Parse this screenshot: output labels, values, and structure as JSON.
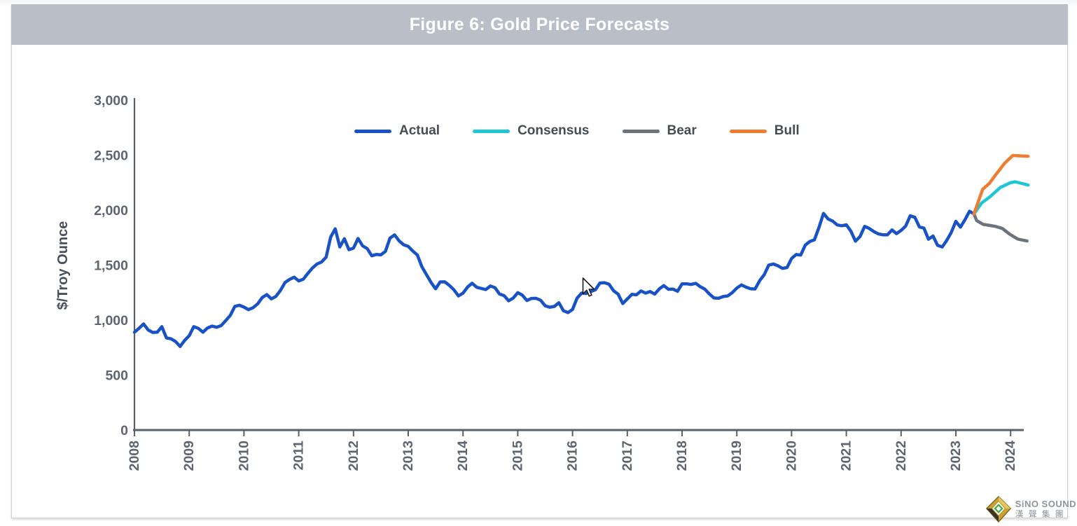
{
  "header": {
    "title": "Figure 6: Gold Price Forecasts"
  },
  "colors": {
    "header_bg": "#b9bec7",
    "axis": "#596169",
    "tick_label": "#5d6570",
    "actual": "#1852c6",
    "consensus": "#1fc6d6",
    "bear": "#6d737b",
    "bull": "#ee7d31"
  },
  "legend": {
    "items": [
      {
        "label": "Actual",
        "color": "#1852c6"
      },
      {
        "label": "Consensus",
        "color": "#1fc6d6"
      },
      {
        "label": "Bear",
        "color": "#6d737b"
      },
      {
        "label": "Bull",
        "color": "#ee7d31"
      }
    ]
  },
  "watermark": {
    "brand": "SiNO SOUND",
    "brand_cn": "漢聲集團"
  },
  "chart_data": {
    "type": "line",
    "title": "Figure 6: Gold Price Forecasts",
    "xlabel": "",
    "ylabel": "$/Troy Ounce",
    "ylim": [
      0,
      3000
    ],
    "yticks": [
      0,
      500,
      1000,
      1500,
      2000,
      2500,
      3000
    ],
    "ytick_labels": [
      "0",
      "500",
      "1,000",
      "1,500",
      "2,000",
      "2,500",
      "3,000"
    ],
    "xticks": [
      2008,
      2009,
      2010,
      2011,
      2012,
      2013,
      2014,
      2015,
      2016,
      2017,
      2018,
      2019,
      2020,
      2021,
      2022,
      2023,
      2024
    ],
    "grid": false,
    "legend_position": "top-center",
    "x_unit": "year, monthly resolution",
    "series": [
      {
        "name": "Actual",
        "color": "#1852c6",
        "x_start": 2008.0,
        "x_step": 0.08333,
        "values": [
          890,
          925,
          965,
          910,
          888,
          890,
          940,
          838,
          830,
          805,
          760,
          815,
          858,
          940,
          925,
          890,
          928,
          945,
          935,
          950,
          995,
          1043,
          1125,
          1135,
          1118,
          1095,
          1113,
          1148,
          1205,
          1232,
          1193,
          1215,
          1270,
          1342,
          1370,
          1390,
          1356,
          1372,
          1424,
          1473,
          1510,
          1528,
          1572,
          1755,
          1830,
          1665,
          1740,
          1640,
          1655,
          1742,
          1675,
          1650,
          1585,
          1597,
          1593,
          1625,
          1745,
          1775,
          1720,
          1685,
          1670,
          1628,
          1592,
          1485,
          1413,
          1342,
          1285,
          1347,
          1348,
          1315,
          1275,
          1220,
          1245,
          1300,
          1335,
          1298,
          1288,
          1278,
          1310,
          1295,
          1237,
          1222,
          1175,
          1200,
          1250,
          1227,
          1178,
          1197,
          1198,
          1180,
          1130,
          1117,
          1124,
          1158,
          1085,
          1068,
          1097,
          1200,
          1245,
          1242,
          1260,
          1275,
          1337,
          1340,
          1326,
          1266,
          1235,
          1150,
          1192,
          1234,
          1230,
          1265,
          1245,
          1260,
          1236,
          1283,
          1314,
          1280,
          1282,
          1262,
          1330,
          1330,
          1324,
          1334,
          1303,
          1281,
          1237,
          1201,
          1198,
          1214,
          1220,
          1250,
          1291,
          1320,
          1300,
          1285,
          1283,
          1358,
          1412,
          1500,
          1510,
          1494,
          1470,
          1478,
          1560,
          1596,
          1591,
          1682,
          1715,
          1730,
          1842,
          1970,
          1920,
          1900,
          1865,
          1858,
          1866,
          1808,
          1718,
          1760,
          1852,
          1834,
          1806,
          1784,
          1776,
          1776,
          1820,
          1786,
          1815,
          1855,
          1948,
          1935,
          1848,
          1836,
          1735,
          1765,
          1680,
          1665,
          1725,
          1798,
          1898,
          1845,
          1912,
          1990,
          1965
        ]
      },
      {
        "name": "Consensus",
        "color": "#1fc6d6",
        "points": [
          [
            2023.33,
            1965
          ],
          [
            2023.47,
            2065
          ],
          [
            2023.63,
            2125
          ],
          [
            2023.81,
            2205
          ],
          [
            2023.99,
            2248
          ],
          [
            2024.08,
            2258
          ],
          [
            2024.32,
            2228
          ]
        ]
      },
      {
        "name": "Bear",
        "color": "#6d737b",
        "points": [
          [
            2023.33,
            1965
          ],
          [
            2023.38,
            1905
          ],
          [
            2023.5,
            1870
          ],
          [
            2023.63,
            1860
          ],
          [
            2023.72,
            1852
          ],
          [
            2023.85,
            1833
          ],
          [
            2023.98,
            1782
          ],
          [
            2024.13,
            1737
          ],
          [
            2024.3,
            1719
          ]
        ]
      },
      {
        "name": "Bull",
        "color": "#ee7d31",
        "points": [
          [
            2023.33,
            1965
          ],
          [
            2023.49,
            2190
          ],
          [
            2023.61,
            2242
          ],
          [
            2023.74,
            2330
          ],
          [
            2023.89,
            2426
          ],
          [
            2024.04,
            2497
          ],
          [
            2024.32,
            2490
          ]
        ]
      }
    ]
  }
}
